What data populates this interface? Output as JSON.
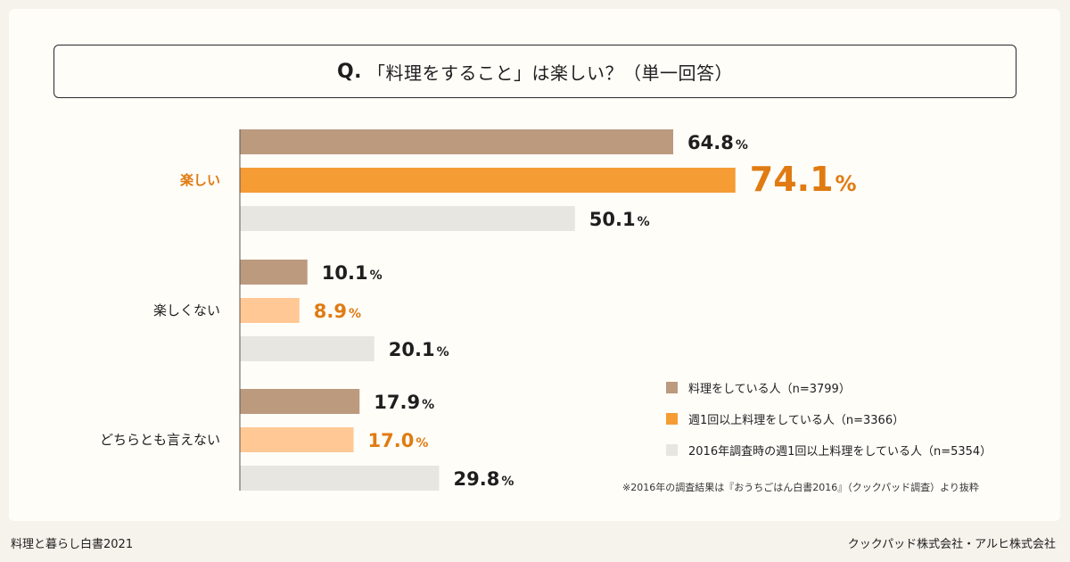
{
  "question": {
    "mark": "Q.",
    "text": "「料理をすること」は楽しい？（単一回答）"
  },
  "chart_data": {
    "type": "bar",
    "orientation": "horizontal",
    "categories": [
      "楽しい",
      "楽しくない",
      "どちらとも言えない"
    ],
    "series": [
      {
        "name": "料理をしている人（n=3799）",
        "values": [
          64.8,
          10.1,
          17.9
        ],
        "color": "#bb9a7e"
      },
      {
        "name": "週1回以上料理をしている人（n=3366）",
        "values": [
          74.1,
          8.9,
          17.0
        ],
        "color": "#f59c34"
      },
      {
        "name": "2016年調査時の週1回以上料理をしている人（n=5354）",
        "values": [
          50.1,
          20.1,
          29.8
        ],
        "color": "#e8e6e0"
      }
    ],
    "value_labels": [
      [
        "64.8",
        "10.1",
        "17.9"
      ],
      [
        "74.1",
        "8.9",
        "17.0"
      ],
      [
        "50.1",
        "20.1",
        "29.8"
      ]
    ],
    "unit": "%",
    "highlight": {
      "series_index": 1,
      "category_index": 0,
      "label_color": "#e07b12",
      "light_color": "#ffc894"
    },
    "label_color_default": "#1e1e1e",
    "category_label_highlight_color": "#e07b12",
    "xlim": [
      0,
      100
    ],
    "grid": false,
    "legend_position": "bottom-right"
  },
  "footnote": "※2016年の調査結果は『おうちごはん白書2016』（クックパッド調査）より抜粋",
  "footer": {
    "left": "料理と暮らし白書2021",
    "right": "クックパッド株式会社・アルヒ株式会社"
  }
}
